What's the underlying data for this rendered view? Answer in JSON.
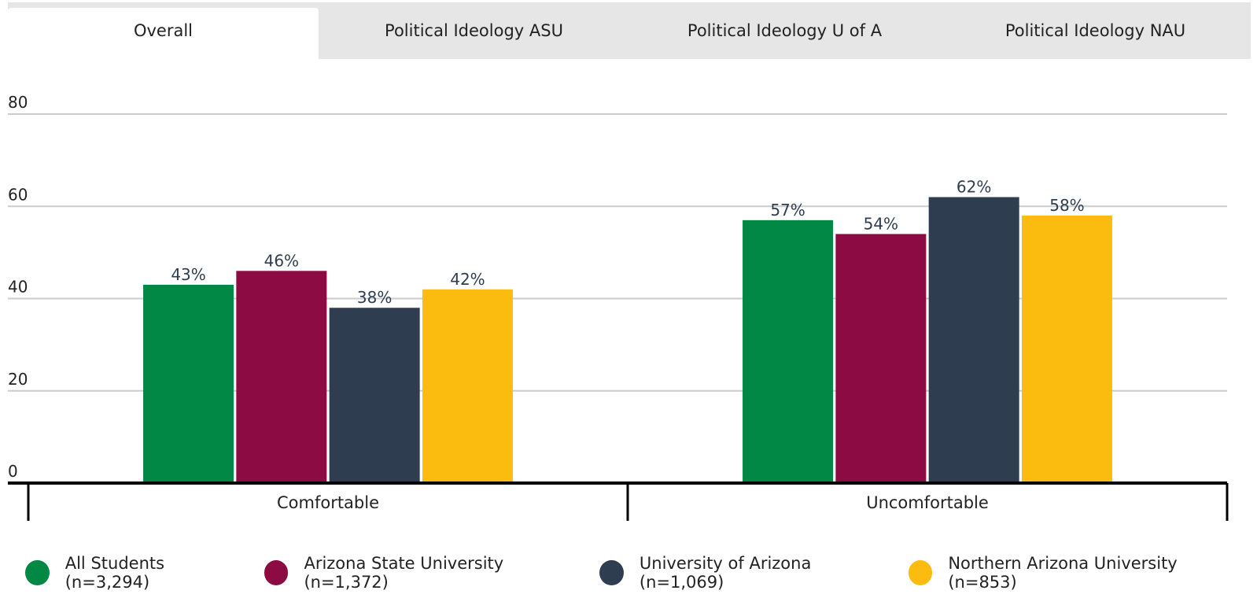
{
  "tabs": [
    {
      "label": "Overall",
      "active": true
    },
    {
      "label": "Political Ideology ASU",
      "active": false
    },
    {
      "label": "Political Ideology U of A",
      "active": false
    },
    {
      "label": "Political Ideology NAU",
      "active": false
    }
  ],
  "chart_data": {
    "type": "bar",
    "categories": [
      "Comfortable",
      "Uncomfortable"
    ],
    "series": [
      {
        "name": "All Students (n=3,294)",
        "color": "#008844",
        "values": [
          43,
          57
        ]
      },
      {
        "name": "Arizona State University (n=1,372)",
        "color": "#8c0b42",
        "values": [
          46,
          54
        ]
      },
      {
        "name": "University of Arizona (n=1,069)",
        "color": "#2e3d4f",
        "values": [
          38,
          62
        ]
      },
      {
        "name": "Northern Arizona University (n=853)",
        "color": "#fbbc0f",
        "values": [
          42,
          58
        ]
      }
    ],
    "data_labels": [
      [
        "43%",
        "57%"
      ],
      [
        "46%",
        "54%"
      ],
      [
        "38%",
        "62%"
      ],
      [
        "42%",
        "58%"
      ]
    ],
    "yticks": [
      "0",
      "20",
      "40",
      "60",
      "80"
    ],
    "ylim": [
      0,
      80
    ],
    "grid": true,
    "legend_position": "bottom"
  }
}
